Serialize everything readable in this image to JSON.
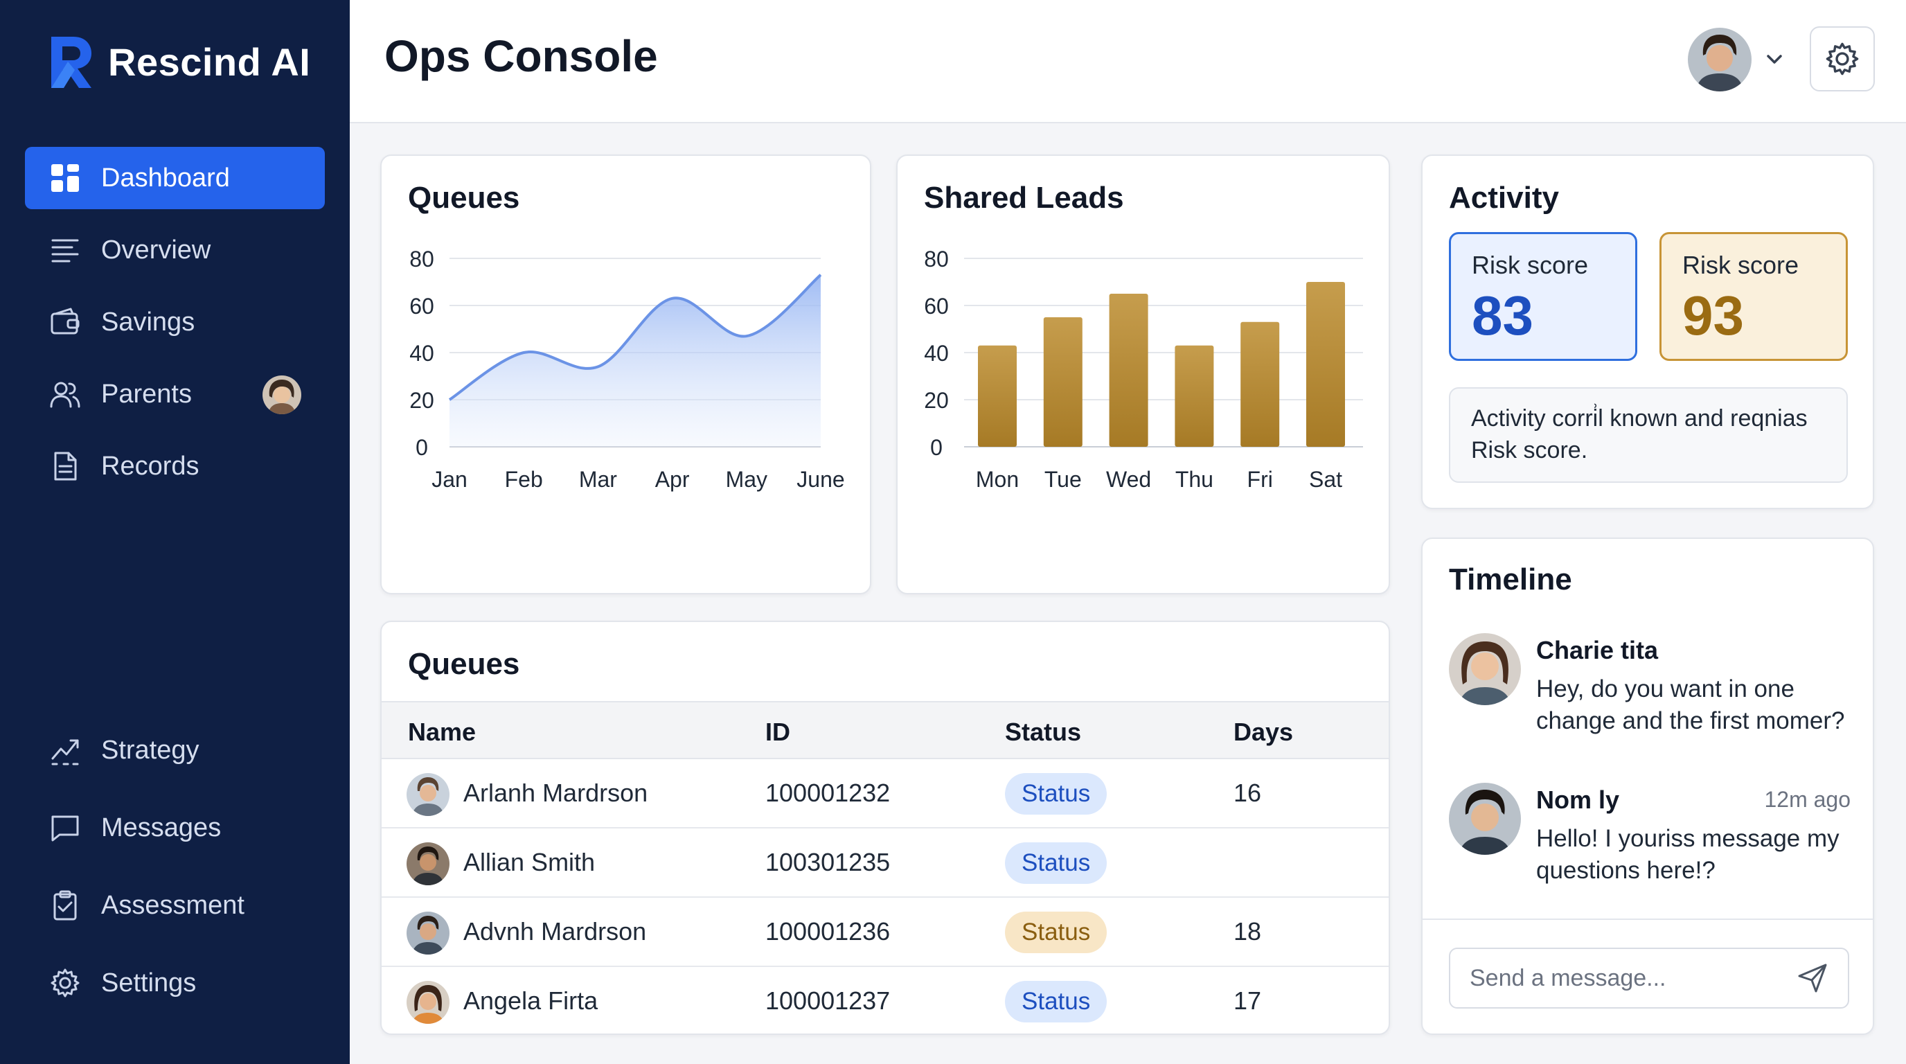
{
  "brand": {
    "name": "Rescind AI",
    "accent": "#2563eb",
    "sidebar_bg": "#0f1f44"
  },
  "sidebar": {
    "top_items": [
      {
        "label": "Dashboard",
        "icon": "grid-icon",
        "active": true
      },
      {
        "label": "Overview",
        "icon": "list-icon"
      },
      {
        "label": "Savings",
        "icon": "wallet-icon"
      },
      {
        "label": "Parents",
        "icon": "users-icon",
        "has_avatar": true
      },
      {
        "label": "Records",
        "icon": "document-icon"
      }
    ],
    "bottom_items": [
      {
        "label": "Strategy",
        "icon": "trend-icon"
      },
      {
        "label": "Messages",
        "icon": "chat-icon"
      },
      {
        "label": "Assessment",
        "icon": "clipboard-icon"
      },
      {
        "label": "Settings",
        "icon": "gear-icon"
      }
    ]
  },
  "header": {
    "title": "Ops Console"
  },
  "queues_chart": {
    "title": "Queues",
    "chart_data": {
      "type": "area",
      "categories": [
        "Jan",
        "Feb",
        "Mar",
        "Apr",
        "May",
        "June"
      ],
      "values": [
        20,
        40,
        34,
        63,
        47,
        73
      ],
      "ylim": [
        0,
        80
      ],
      "yticks": [
        0,
        20,
        40,
        60,
        80
      ],
      "color": "#6b93e6",
      "grid": true
    }
  },
  "leads_chart": {
    "title": "Shared Leads",
    "chart_data": {
      "type": "bar",
      "categories": [
        "Mon",
        "Tue",
        "Wed",
        "Thu",
        "Fri",
        "Sat"
      ],
      "values": [
        43,
        55,
        65,
        43,
        53,
        70
      ],
      "ylim": [
        0,
        80
      ],
      "yticks": [
        0,
        20,
        40,
        60,
        80
      ],
      "color": "#b98a33",
      "grid": true
    }
  },
  "activity": {
    "title": "Activity",
    "risk_cards": [
      {
        "label": "Risk score",
        "value": "83",
        "tone": "blue"
      },
      {
        "label": "Risk score",
        "value": "93",
        "tone": "gold"
      }
    ],
    "note": "Activity corri͗l known and reqnias Risk score."
  },
  "queues_table": {
    "title": "Queues",
    "columns": [
      "Name",
      "ID",
      "Status",
      "Days"
    ],
    "rows": [
      {
        "name": "Arlanh Mardrson",
        "id": "100001232",
        "status": "Status",
        "tone": "blue",
        "days": "16"
      },
      {
        "name": "Allian Smith",
        "id": "100301235",
        "status": "Status",
        "tone": "blue",
        "days": ""
      },
      {
        "name": "Advnh Mardrson",
        "id": "100001236",
        "status": "Status",
        "tone": "gold",
        "days": "18"
      },
      {
        "name": "Angela Firta",
        "id": "100001237",
        "status": "Status",
        "tone": "blue",
        "days": "17"
      }
    ]
  },
  "timeline": {
    "title": "Timeline",
    "items": [
      {
        "name": "Charie tita",
        "time": "",
        "message": "Hey, do you want in one change and the first momer?"
      },
      {
        "name": "Nom ly",
        "time": "12m ago",
        "message": "Hello! I youriss message my questions here!?"
      }
    ],
    "input_placeholder": "Send a message..."
  }
}
